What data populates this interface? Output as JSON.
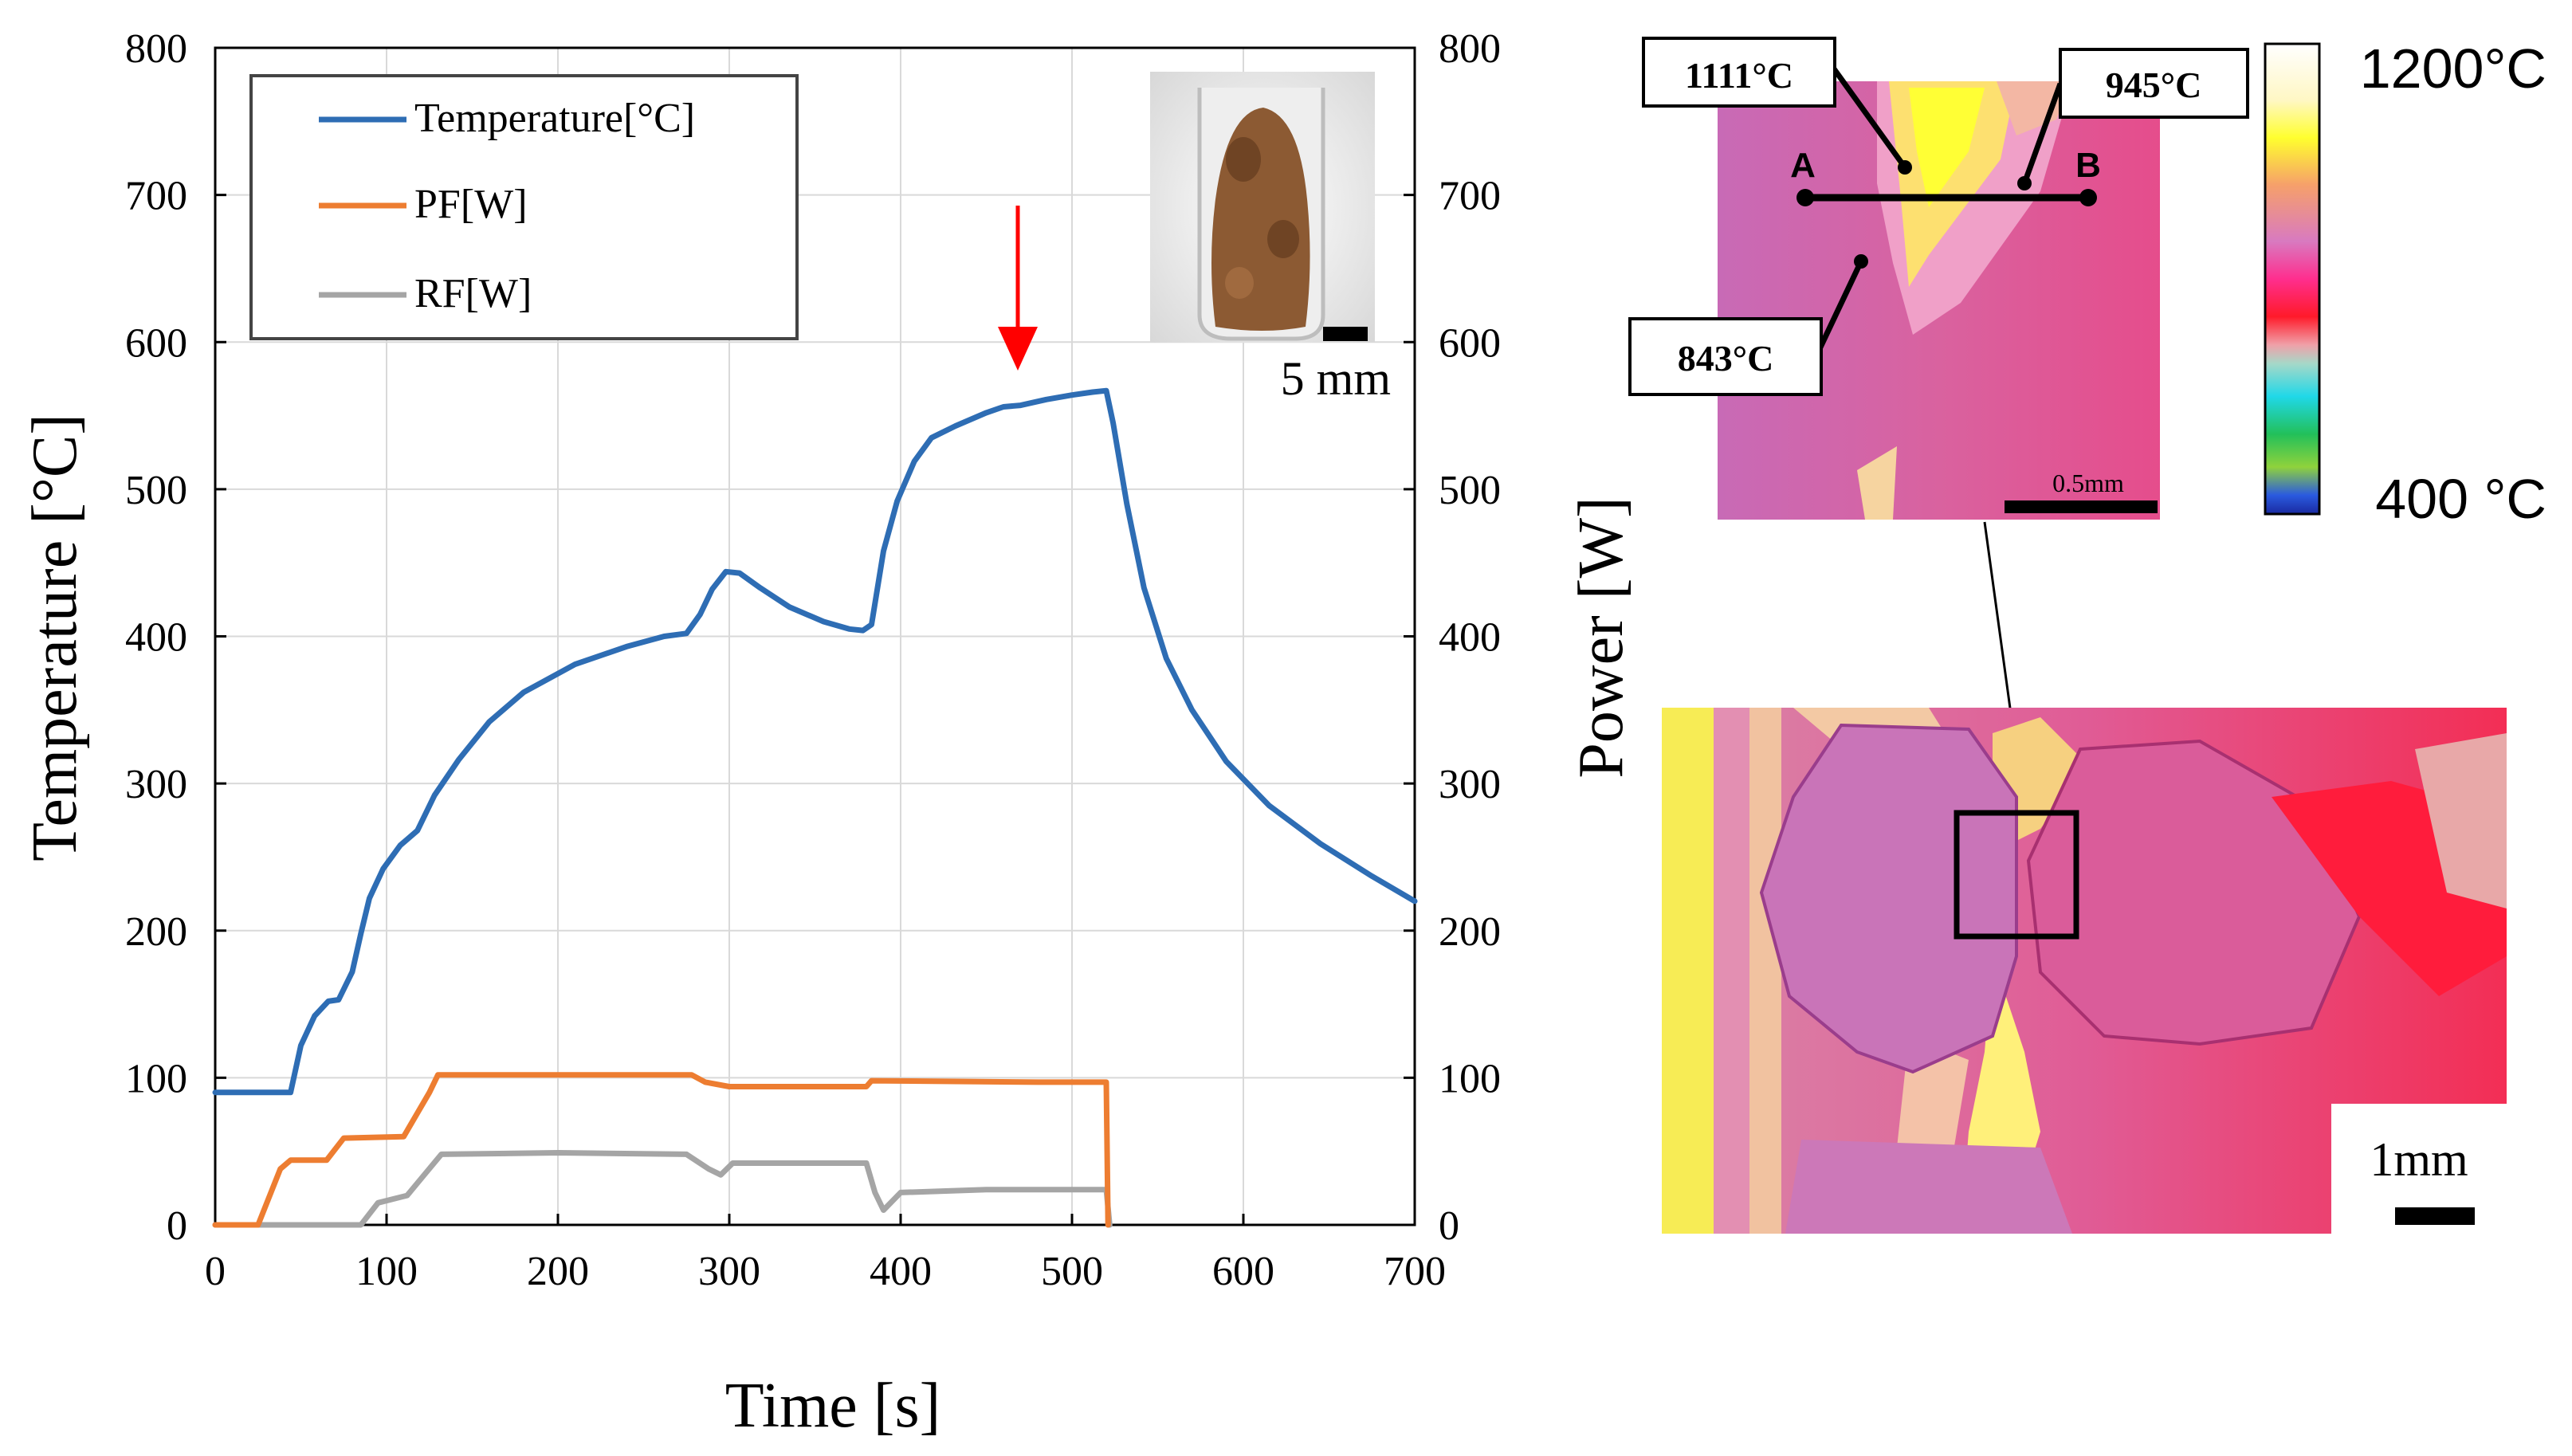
{
  "chart_data": {
    "type": "line",
    "x_label": "Time [s]",
    "y_label_left": "Temperature [°C]",
    "y_label_right": "Power [W]",
    "xlim": [
      0,
      700
    ],
    "ylim": [
      0,
      800
    ],
    "x_ticks": [
      "0",
      "100",
      "200",
      "300",
      "400",
      "500",
      "600",
      "700"
    ],
    "y_ticks": [
      "0",
      "100",
      "200",
      "300",
      "400",
      "500",
      "600",
      "700",
      "800"
    ],
    "grid": true,
    "legend": {
      "placement": "top-left"
    },
    "series": [
      {
        "name": "Temperature[°C]",
        "color": "#2E6DB4",
        "points": [
          [
            0,
            90
          ],
          [
            44,
            90
          ],
          [
            50,
            122
          ],
          [
            58,
            142
          ],
          [
            66,
            152
          ],
          [
            72,
            153
          ],
          [
            80,
            172
          ],
          [
            85,
            198
          ],
          [
            90,
            222
          ],
          [
            98,
            242
          ],
          [
            108,
            258
          ],
          [
            118,
            268
          ],
          [
            128,
            292
          ],
          [
            142,
            316
          ],
          [
            160,
            342
          ],
          [
            180,
            362
          ],
          [
            210,
            381
          ],
          [
            240,
            393
          ],
          [
            262,
            400
          ],
          [
            275,
            402
          ],
          [
            283,
            415
          ],
          [
            290,
            432
          ],
          [
            298,
            444
          ],
          [
            306,
            443
          ],
          [
            318,
            433
          ],
          [
            335,
            420
          ],
          [
            355,
            410
          ],
          [
            370,
            405
          ],
          [
            378,
            404
          ],
          [
            383,
            408
          ],
          [
            390,
            458
          ],
          [
            398,
            492
          ],
          [
            408,
            519
          ],
          [
            418,
            535
          ],
          [
            432,
            543
          ],
          [
            450,
            552
          ],
          [
            460,
            556
          ],
          [
            470,
            557
          ],
          [
            485,
            561
          ],
          [
            500,
            564
          ],
          [
            512,
            566
          ],
          [
            520,
            567
          ],
          [
            524,
            545
          ],
          [
            532,
            490
          ],
          [
            542,
            433
          ],
          [
            555,
            385
          ],
          [
            570,
            350
          ],
          [
            590,
            315
          ],
          [
            615,
            285
          ],
          [
            645,
            259
          ],
          [
            675,
            237
          ],
          [
            700,
            220
          ]
        ]
      },
      {
        "name": "PF[W]",
        "color": "#ED7D31",
        "points": [
          [
            0,
            0
          ],
          [
            25,
            0
          ],
          [
            38,
            38
          ],
          [
            44,
            44
          ],
          [
            65,
            44
          ],
          [
            75,
            59
          ],
          [
            110,
            60
          ],
          [
            125,
            90
          ],
          [
            130,
            102
          ],
          [
            180,
            102
          ],
          [
            250,
            102
          ],
          [
            278,
            102
          ],
          [
            286,
            97
          ],
          [
            300,
            94
          ],
          [
            380,
            94
          ],
          [
            383,
            98
          ],
          [
            480,
            97
          ],
          [
            520,
            97
          ],
          [
            521,
            0
          ]
        ]
      },
      {
        "name": "RF[W]",
        "color": "#A5A5A5",
        "points": [
          [
            0,
            0
          ],
          [
            85,
            0
          ],
          [
            95,
            15
          ],
          [
            112,
            20
          ],
          [
            122,
            34
          ],
          [
            132,
            48
          ],
          [
            200,
            49
          ],
          [
            275,
            48
          ],
          [
            288,
            38
          ],
          [
            295,
            34
          ],
          [
            302,
            42
          ],
          [
            380,
            42
          ],
          [
            385,
            22
          ],
          [
            390,
            10
          ],
          [
            400,
            22
          ],
          [
            450,
            24
          ],
          [
            515,
            24
          ],
          [
            520,
            24
          ],
          [
            522,
            0
          ]
        ]
      }
    ],
    "annotations": [
      "arrow at t≈465 s pointing down to temperature curve"
    ]
  },
  "legend_items": [
    "Temperature[°C]",
    "PF[W]",
    "RF[W]"
  ],
  "inset_photo": {
    "scale_label": "5 mm"
  },
  "thermal_zoom": {
    "labels": {
      "t1111": "1111°C",
      "t945": "945°C",
      "t843": "843°C",
      "point_a": "A",
      "point_b": "B",
      "scale": "0.5mm"
    }
  },
  "colorbar": {
    "max_label": "1200°C",
    "min_label": "400 °C"
  },
  "thermal_full": {
    "scale_label": "1mm"
  }
}
